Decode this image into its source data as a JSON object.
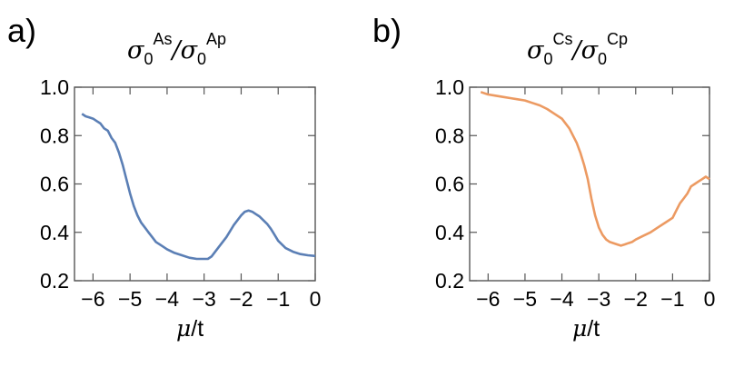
{
  "colors": {
    "series_a": "#5b7fb5",
    "series_b": "#ec9a62"
  },
  "chart_data": [
    {
      "type": "line",
      "panel_label": "a)",
      "title": {
        "sym1": "σ",
        "sub1": "0",
        "sup1": "As",
        "slash": "/",
        "sym2": "σ",
        "sub2": "0",
        "sup2": "Ap"
      },
      "xlabel": {
        "sym": "μ",
        "unit": "/t"
      },
      "xlim": [
        -6.5,
        0
      ],
      "ylim": [
        0.2,
        1.0
      ],
      "xticks": [
        -6,
        -5,
        -4,
        -3,
        -2,
        -1,
        0
      ],
      "xtick_labels": [
        "−6",
        "−5",
        "−4",
        "−3",
        "−2",
        "−1",
        "0"
      ],
      "yticks": [
        0.2,
        0.4,
        0.6,
        0.8,
        1.0
      ],
      "ytick_labels": [
        "0.2",
        "0.4",
        "0.6",
        "0.8",
        "1.0"
      ],
      "grid": false,
      "series": [
        {
          "color": "#5b7fb5",
          "x": [
            -6.3,
            -6.2,
            -6.1,
            -6.0,
            -5.9,
            -5.8,
            -5.7,
            -5.6,
            -5.5,
            -5.4,
            -5.3,
            -5.2,
            -5.1,
            -5.0,
            -4.9,
            -4.8,
            -4.7,
            -4.6,
            -4.5,
            -4.4,
            -4.3,
            -4.2,
            -4.1,
            -4.0,
            -3.8,
            -3.6,
            -3.4,
            -3.2,
            -3.0,
            -2.9,
            -2.8,
            -2.6,
            -2.4,
            -2.2,
            -2.0,
            -1.9,
            -1.8,
            -1.7,
            -1.6,
            -1.5,
            -1.4,
            -1.3,
            -1.2,
            -1.1,
            -1.0,
            -0.8,
            -0.6,
            -0.4,
            -0.2,
            0.0
          ],
          "y": [
            0.89,
            0.88,
            0.875,
            0.87,
            0.86,
            0.85,
            0.83,
            0.82,
            0.79,
            0.77,
            0.73,
            0.68,
            0.62,
            0.56,
            0.51,
            0.47,
            0.44,
            0.42,
            0.4,
            0.38,
            0.36,
            0.35,
            0.34,
            0.33,
            0.315,
            0.305,
            0.295,
            0.29,
            0.29,
            0.29,
            0.3,
            0.34,
            0.38,
            0.43,
            0.47,
            0.485,
            0.49,
            0.485,
            0.475,
            0.465,
            0.45,
            0.435,
            0.415,
            0.39,
            0.365,
            0.335,
            0.32,
            0.31,
            0.305,
            0.302
          ]
        }
      ]
    },
    {
      "type": "line",
      "panel_label": "b)",
      "title": {
        "sym1": "σ",
        "sub1": "0",
        "sup1": "Cs",
        "slash": "/",
        "sym2": "σ",
        "sub2": "0",
        "sup2": "Cp"
      },
      "xlabel": {
        "sym": "μ",
        "unit": "/t"
      },
      "xlim": [
        -6.5,
        0
      ],
      "ylim": [
        0.2,
        1.0
      ],
      "xticks": [
        -6,
        -5,
        -4,
        -3,
        -2,
        -1,
        0
      ],
      "xtick_labels": [
        "−6",
        "−5",
        "−4",
        "−3",
        "−2",
        "−1",
        "0"
      ],
      "yticks": [
        0.2,
        0.4,
        0.6,
        0.8,
        1.0
      ],
      "ytick_labels": [
        "0.2",
        "0.4",
        "0.6",
        "0.8",
        "1.0"
      ],
      "grid": false,
      "series": [
        {
          "color": "#ec9a62",
          "x": [
            -6.2,
            -6.0,
            -5.8,
            -5.6,
            -5.4,
            -5.2,
            -5.0,
            -4.8,
            -4.6,
            -4.4,
            -4.2,
            -4.0,
            -3.9,
            -3.8,
            -3.7,
            -3.6,
            -3.5,
            -3.4,
            -3.3,
            -3.2,
            -3.1,
            -3.0,
            -2.9,
            -2.8,
            -2.7,
            -2.6,
            -2.5,
            -2.4,
            -2.3,
            -2.2,
            -2.1,
            -2.0,
            -1.8,
            -1.6,
            -1.4,
            -1.2,
            -1.0,
            -0.9,
            -0.8,
            -0.7,
            -0.6,
            -0.5,
            -0.4,
            -0.3,
            -0.2,
            -0.1,
            0.0
          ],
          "y": [
            0.98,
            0.97,
            0.965,
            0.96,
            0.955,
            0.95,
            0.945,
            0.935,
            0.925,
            0.91,
            0.89,
            0.87,
            0.85,
            0.83,
            0.8,
            0.77,
            0.73,
            0.68,
            0.62,
            0.54,
            0.47,
            0.42,
            0.39,
            0.37,
            0.36,
            0.355,
            0.35,
            0.345,
            0.35,
            0.355,
            0.36,
            0.37,
            0.385,
            0.4,
            0.42,
            0.44,
            0.46,
            0.49,
            0.52,
            0.54,
            0.56,
            0.59,
            0.6,
            0.61,
            0.62,
            0.63,
            0.62
          ]
        }
      ]
    }
  ]
}
